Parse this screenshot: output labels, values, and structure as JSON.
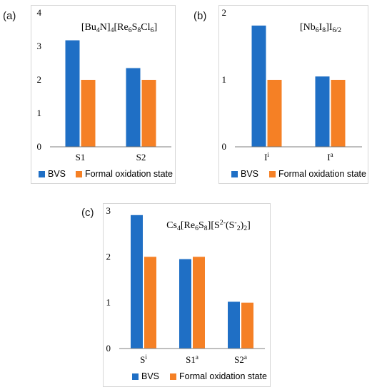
{
  "panels": [
    {
      "label": "(a)"
    },
    {
      "label": "(b)"
    },
    {
      "label": "(c)"
    }
  ],
  "colors": {
    "bvs": "#1f6fc5",
    "formal": "#f58025",
    "axis": "#7f7f7f"
  },
  "chart_data": [
    {
      "type": "bar",
      "title": "[Bu4N]4[Re6S8Cl6]",
      "title_parts": [
        {
          "t": "[Bu"
        },
        {
          "t": "4",
          "sub": true
        },
        {
          "t": "N]"
        },
        {
          "t": "4",
          "sub": true
        },
        {
          "t": "[Re"
        },
        {
          "t": "6",
          "sub": true
        },
        {
          "t": "S"
        },
        {
          "t": "8",
          "sub": true
        },
        {
          "t": "Cl"
        },
        {
          "t": "6",
          "sub": true
        },
        {
          "t": "]"
        }
      ],
      "categories": [
        "S1",
        "S2"
      ],
      "category_parts": [
        [
          {
            "t": "S1"
          }
        ],
        [
          {
            "t": "S2"
          }
        ]
      ],
      "series": [
        {
          "name": "BVS",
          "values": [
            3.18,
            2.35
          ]
        },
        {
          "name": "Formal oxidation state",
          "values": [
            2,
            2
          ]
        }
      ],
      "ylim": [
        0,
        4
      ],
      "yticks": [
        0,
        1,
        2,
        3,
        4
      ],
      "grid": false,
      "legend": "bottom"
    },
    {
      "type": "bar",
      "title": "[Nb6I8]I6/2",
      "title_parts": [
        {
          "t": "[Nb"
        },
        {
          "t": "6",
          "sub": true
        },
        {
          "t": "I"
        },
        {
          "t": "8",
          "sub": true
        },
        {
          "t": "]I"
        },
        {
          "t": "6/2",
          "sub": true
        }
      ],
      "categories": [
        "Ii",
        "Ia"
      ],
      "category_parts": [
        [
          {
            "t": "I"
          },
          {
            "t": "i",
            "sup": true
          }
        ],
        [
          {
            "t": "I"
          },
          {
            "t": "a",
            "sup": true
          }
        ]
      ],
      "series": [
        {
          "name": "BVS",
          "values": [
            1.81,
            1.05
          ]
        },
        {
          "name": "Formal oxidation state",
          "values": [
            1,
            1
          ]
        }
      ],
      "ylim": [
        0,
        2
      ],
      "yticks": [
        0,
        1,
        2
      ],
      "grid": false,
      "legend": "bottom"
    },
    {
      "type": "bar",
      "title": "Cs4[Re6S8][S2-(S-2)2]",
      "title_parts": [
        {
          "t": "Cs"
        },
        {
          "t": "4",
          "sub": true
        },
        {
          "t": "[Re"
        },
        {
          "t": "6",
          "sub": true
        },
        {
          "t": "S"
        },
        {
          "t": "8",
          "sub": true
        },
        {
          "t": "][S"
        },
        {
          "t": "2-",
          "sup": true
        },
        {
          "t": "(S"
        },
        {
          "t": "-",
          "sup": true
        },
        {
          "t": "2",
          "sub": true
        },
        {
          "t": ")"
        },
        {
          "t": "2",
          "sub": true
        },
        {
          "t": "]"
        }
      ],
      "categories": [
        "Si",
        "S1a",
        "S2a"
      ],
      "category_parts": [
        [
          {
            "t": "S"
          },
          {
            "t": "i",
            "sup": true
          }
        ],
        [
          {
            "t": "S1"
          },
          {
            "t": "a",
            "sup": true
          }
        ],
        [
          {
            "t": "S2"
          },
          {
            "t": "a",
            "sup": true
          }
        ]
      ],
      "series": [
        {
          "name": "BVS",
          "values": [
            2.91,
            1.95,
            1.02
          ]
        },
        {
          "name": "Formal oxidation state",
          "values": [
            2,
            2,
            1
          ]
        }
      ],
      "ylim": [
        0,
        3
      ],
      "yticks": [
        0,
        1,
        2,
        3
      ],
      "grid": false,
      "legend": "bottom"
    }
  ]
}
